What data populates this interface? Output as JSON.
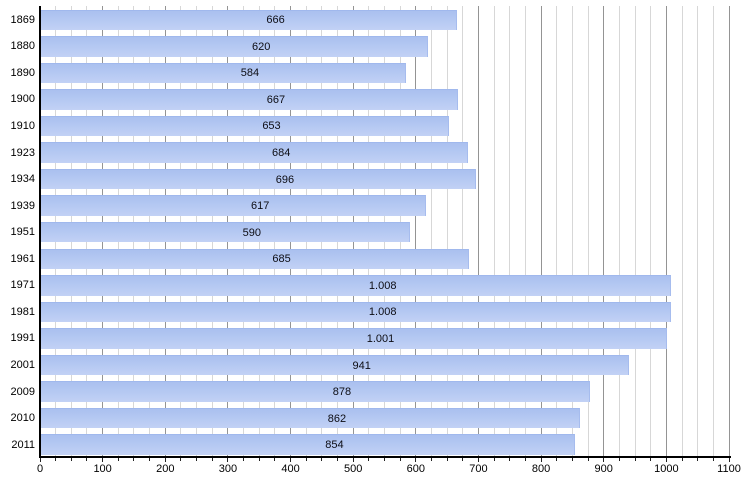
{
  "chart_data": {
    "type": "bar",
    "orientation": "horizontal",
    "title": "",
    "xlabel": "",
    "ylabel": "",
    "categories": [
      "1869",
      "1880",
      "1890",
      "1900",
      "1910",
      "1923",
      "1934",
      "1939",
      "1951",
      "1961",
      "1971",
      "1981",
      "1991",
      "2001",
      "2009",
      "2010",
      "2011"
    ],
    "values": [
      666,
      620,
      584,
      667,
      653,
      684,
      696,
      617,
      590,
      685,
      1008,
      1008,
      1001,
      941,
      878,
      862,
      854
    ],
    "value_labels": [
      "666",
      "620",
      "584",
      "667",
      "653",
      "684",
      "696",
      "617",
      "590",
      "685",
      "1.008",
      "1.008",
      "1.001",
      "941",
      "878",
      "862",
      "854"
    ],
    "xlim": [
      0,
      1100
    ],
    "x_tick_labels": [
      "0",
      "100",
      "200",
      "300",
      "400",
      "500",
      "600",
      "700",
      "800",
      "900",
      "1000",
      "1100"
    ],
    "x_major_step": 100,
    "x_minor_step": 25,
    "grid": "vertical",
    "legend": "none",
    "colors": {
      "bar_fill": "#b4c8f2",
      "bar_edge": "#a0b8ed",
      "grid_minor": "#d7d7d7",
      "grid_major": "#949494",
      "axis": "#000000",
      "text": "#000000"
    }
  }
}
